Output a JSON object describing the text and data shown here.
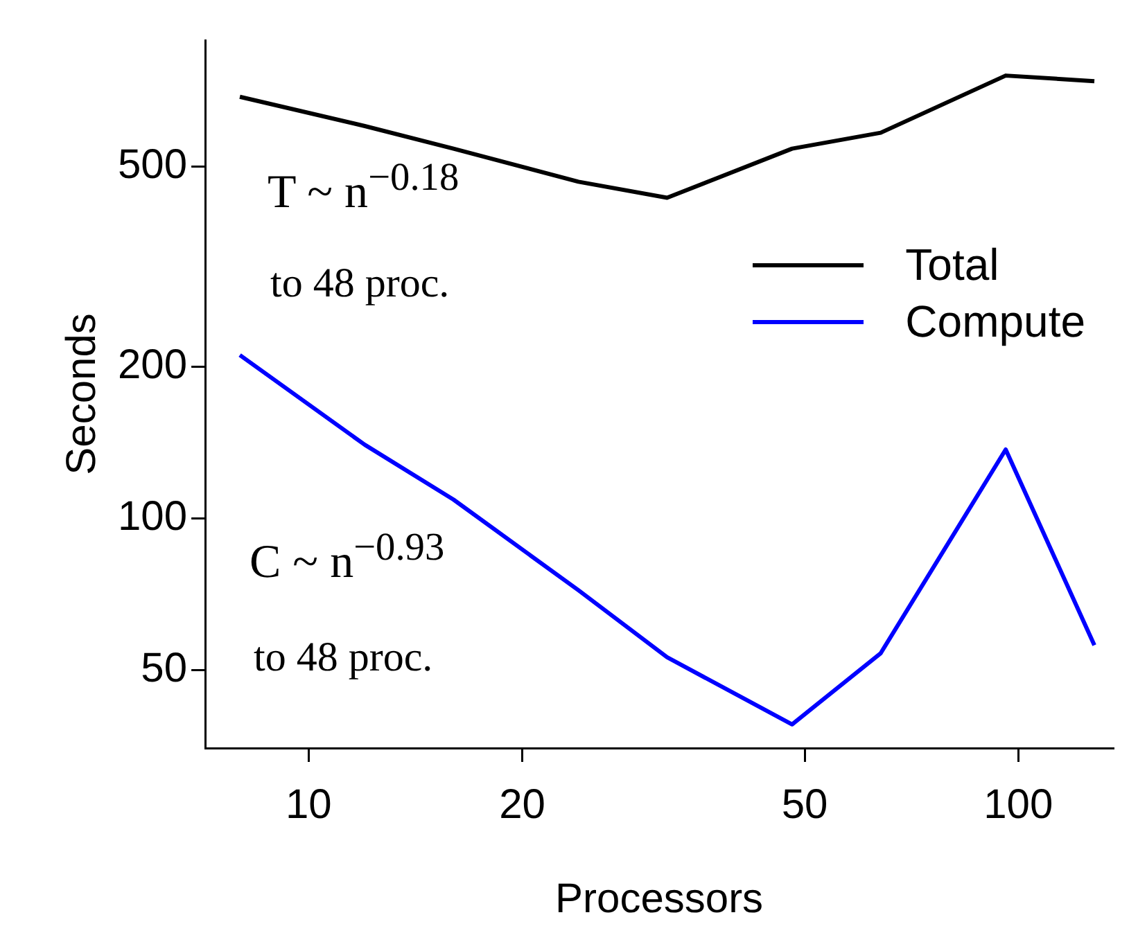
{
  "chart_data": {
    "type": "line",
    "xlabel": "Processors",
    "ylabel": "Seconds",
    "log": "xy",
    "x": [
      8,
      12,
      16,
      24,
      32,
      48,
      64,
      96,
      128
    ],
    "series": [
      {
        "name": "Total",
        "color": "#000000",
        "values": [
          687,
          601,
          542,
          466,
          433,
          542,
          583,
          757,
          738
        ]
      },
      {
        "name": "Compute",
        "color": "#0000ff",
        "values": [
          211,
          140,
          109,
          72,
          53,
          39,
          54,
          137,
          56
        ]
      }
    ],
    "xlim": [
      7.15,
      136
    ],
    "xticks": [
      10,
      20,
      50,
      100
    ],
    "ylim": [
      35,
      890
    ],
    "yticks": [
      50,
      100,
      200,
      500
    ],
    "grid": false,
    "legend": "right",
    "marker": "none",
    "line_style": "solid",
    "annotations": [
      "T ~ n$^{−0.18}$",
      "to 48 proc.",
      "C ~ n$^{−0.93}$",
      "to 48 proc."
    ]
  }
}
